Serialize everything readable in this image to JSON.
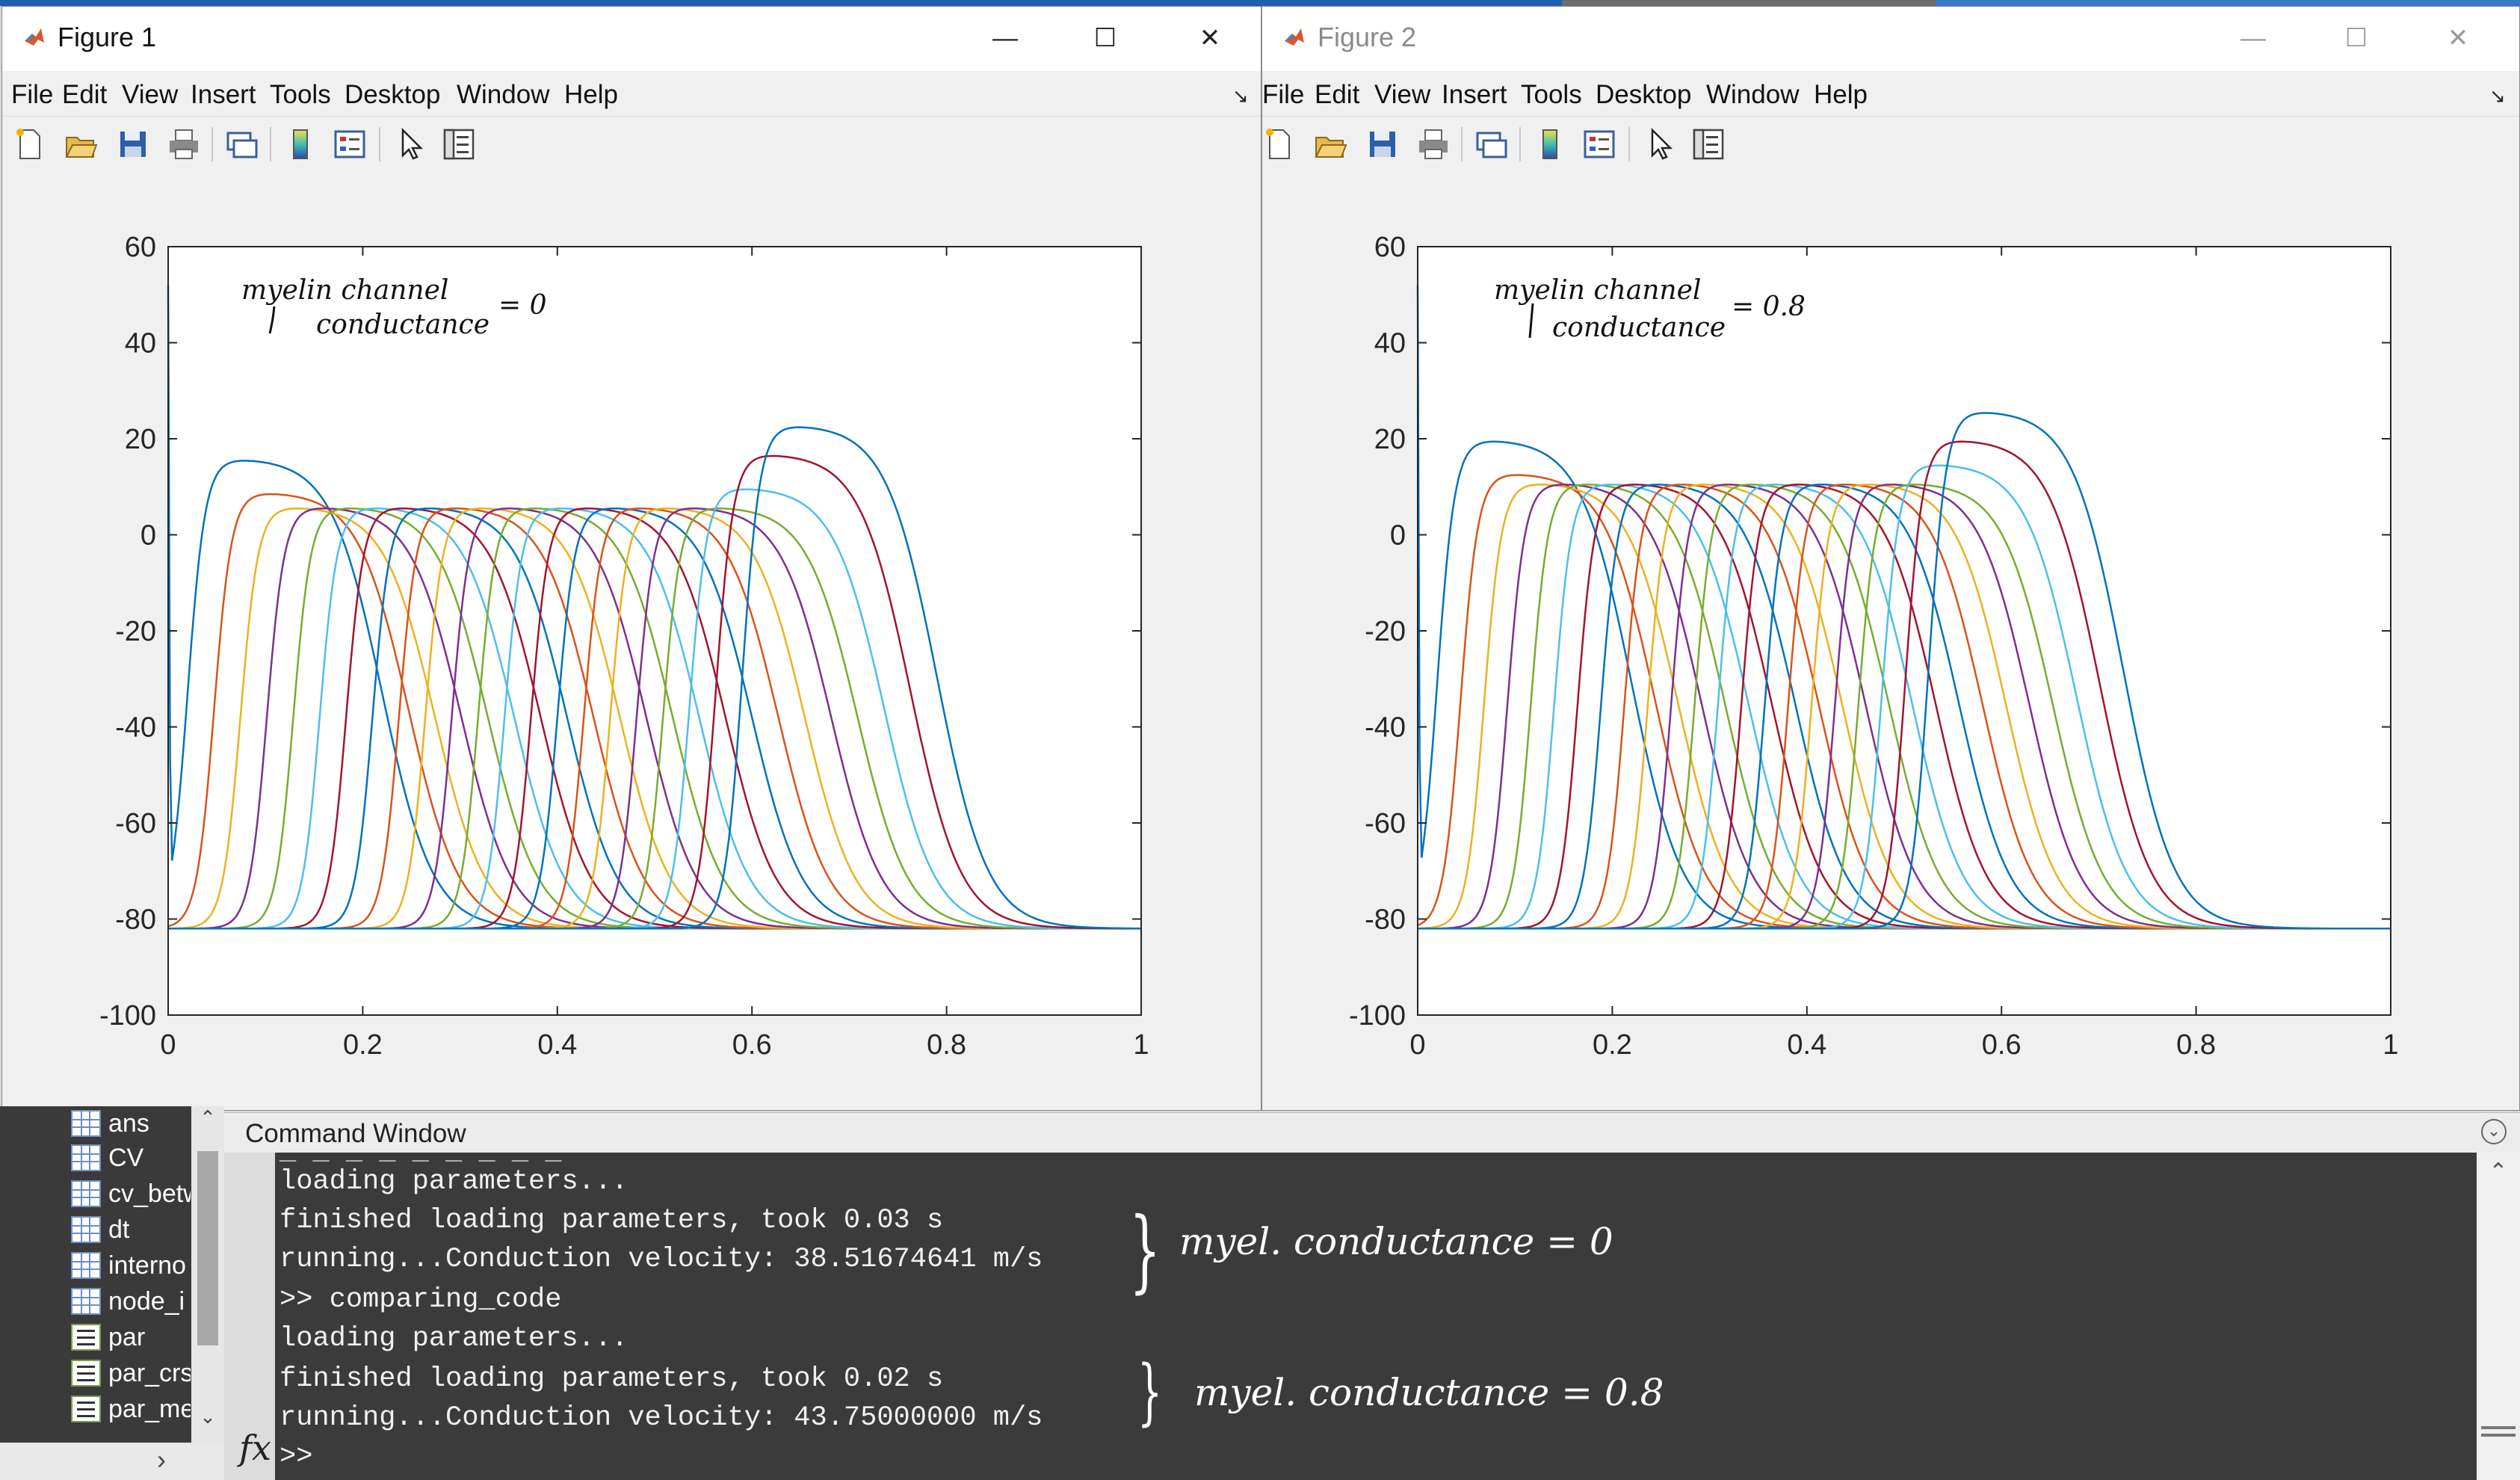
{
  "figures": [
    {
      "title": "Figure 1",
      "active": true,
      "menu": [
        "File",
        "Edit",
        "View",
        "Insert",
        "Tools",
        "Desktop",
        "Window",
        "Help"
      ],
      "annotation": {
        "line1": "myelin channel",
        "line2": "conductance",
        "value": "= 0"
      }
    },
    {
      "title": "Figure 2",
      "active": false,
      "menu": [
        "File",
        "Edit",
        "View",
        "Insert",
        "Tools",
        "Desktop",
        "Window",
        "Help"
      ],
      "annotation": {
        "line1": "myelin channel",
        "line2": "conductance",
        "value": "= 0.8"
      }
    }
  ],
  "toolbar_icons": [
    "new-figure-icon",
    "open-file-icon",
    "save-icon",
    "print-icon",
    "link-icon",
    "colorbar-icon",
    "legend-icon",
    "edit-plot-icon",
    "property-inspector-icon"
  ],
  "window_controls": {
    "minimize": "—",
    "maximize": "☐",
    "close": "✕"
  },
  "chart_data": [
    {
      "type": "line",
      "title": "",
      "xlabel": "",
      "ylabel": "",
      "xlim": [
        0,
        1
      ],
      "ylim": [
        -100,
        60
      ],
      "xticks": [
        "0",
        "0.2",
        "0.4",
        "0.6",
        "0.8",
        "1"
      ],
      "yticks": [
        "60",
        "40",
        "20",
        "0",
        "-20",
        "-40",
        "-60",
        "-80",
        "-100"
      ],
      "grid": false,
      "rest_potential": -82,
      "series_count": 22,
      "onset_first": 0.005,
      "onset_last": 0.575,
      "plateau_peak": 6,
      "final_peak": 23,
      "stimulus_spike": 52,
      "colors": [
        "#0072BD",
        "#D95319",
        "#EDB120",
        "#7E2F8E",
        "#77AC30",
        "#4DBEEE",
        "#A2142F"
      ]
    },
    {
      "type": "line",
      "title": "",
      "xlabel": "",
      "ylabel": "",
      "xlim": [
        0,
        1
      ],
      "ylim": [
        -100,
        60
      ],
      "xticks": [
        "0",
        "0.2",
        "0.4",
        "0.6",
        "0.8",
        "1"
      ],
      "yticks": [
        "60",
        "40",
        "20",
        "0",
        "-20",
        "-40",
        "-60",
        "-80",
        "-100"
      ],
      "grid": false,
      "rest_potential": -82,
      "series_count": 22,
      "onset_first": 0.005,
      "onset_last": 0.51,
      "plateau_peak": 11,
      "final_peak": 26,
      "stimulus_spike": 52,
      "colors": [
        "#0072BD",
        "#D95319",
        "#EDB120",
        "#7E2F8E",
        "#77AC30",
        "#4DBEEE",
        "#A2142F"
      ]
    }
  ],
  "workspace": {
    "variables": [
      "ans",
      "CV",
      "cv_betw",
      "dt",
      "interno",
      "node_i",
      "par",
      "par_crs",
      "par_me"
    ]
  },
  "command_window": {
    "title": "Command Window",
    "lines": [
      "loading parameters...",
      "finished loading parameters, took 0.03 s",
      "running...Conduction velocity: 38.51674641 m/s",
      ">> comparing_code",
      "loading parameters...",
      "finished loading parameters, took 0.02 s",
      "running...Conduction velocity: 43.75000000 m/s",
      ">>"
    ],
    "fx_label": "fx",
    "notes": [
      "myel. conductance = 0",
      "myel. conductance = 0.8"
    ]
  }
}
